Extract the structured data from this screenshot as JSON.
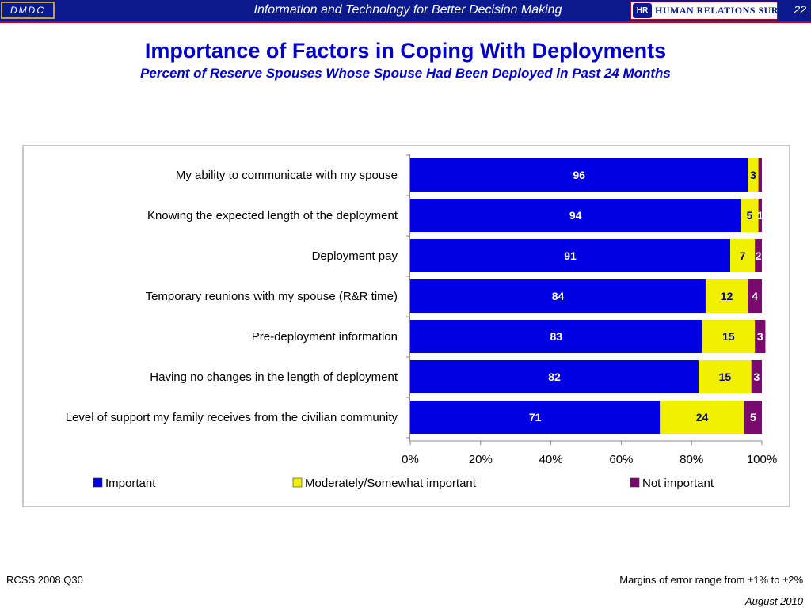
{
  "header": {
    "org": "DMDC",
    "tagline": "Information and Technology for Better Decision Making",
    "logo_text": "Human Relations Surveys",
    "logo_mark": "HR",
    "page_number": "22"
  },
  "chart_data": {
    "type": "bar",
    "orientation": "horizontal",
    "stacked": true,
    "title": "Importance of Factors in Coping With Deployments",
    "subtitle": "Percent of Reserve Spouses Whose Spouse Had Been Deployed in Past 24 Months",
    "categories": [
      "My ability to communicate with my spouse",
      "Knowing the expected length of the deployment",
      "Deployment pay",
      "Temporary reunions with my spouse (R&R time)",
      "Pre-deployment information",
      "Having no changes in the length of deployment",
      "Level of support my family receives from the civilian community"
    ],
    "series": [
      {
        "name": "Important",
        "color": "#0000e0",
        "label_color": "#ffffff",
        "values": [
          96,
          94,
          91,
          84,
          83,
          82,
          71
        ]
      },
      {
        "name": "Moderately/Somewhat important",
        "color": "#f0f000",
        "label_color": "#000080",
        "values": [
          3,
          5,
          7,
          12,
          15,
          15,
          24
        ]
      },
      {
        "name": "Not important",
        "color": "#7a0a6e",
        "label_color": "#ffffff",
        "values": [
          1,
          1,
          2,
          4,
          3,
          3,
          5
        ]
      }
    ],
    "data_labels": [
      [
        "96",
        "94",
        "91",
        "84",
        "83",
        "82",
        "71"
      ],
      [
        "3",
        "5",
        "7",
        "12",
        "15",
        "15",
        "24"
      ],
      [
        "",
        "1",
        "2",
        "4",
        "3",
        "3",
        "5"
      ]
    ],
    "xlim": [
      0,
      100
    ],
    "x_ticks": [
      "0%",
      "20%",
      "40%",
      "60%",
      "80%",
      "100%"
    ],
    "legend_position": "bottom",
    "grid": false
  },
  "footer": {
    "source": "RCSS 2008 Q30",
    "note": "Margins of error range from ±1% to ±2%",
    "date": "August 2010"
  }
}
